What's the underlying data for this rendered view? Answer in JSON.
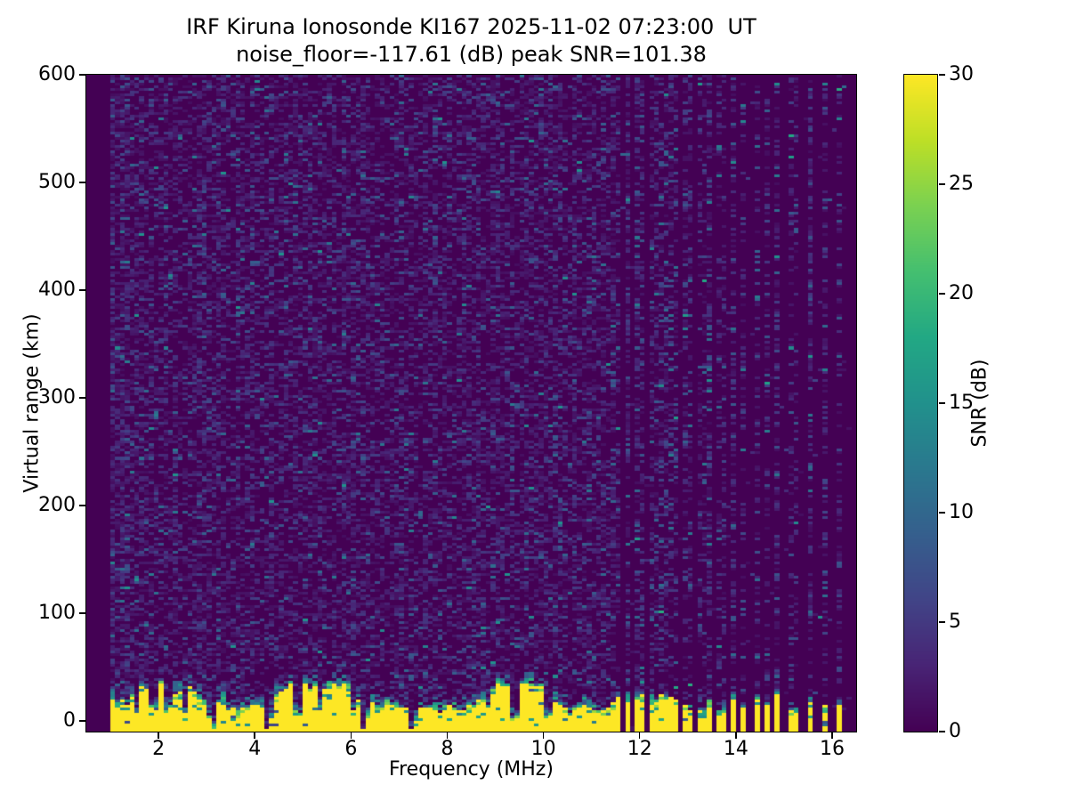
{
  "chart_data": {
    "type": "heatmap",
    "title_line1": "IRF Kiruna Ionosonde KI167 2025-11-02 07:23:00  UT",
    "title_line2": "noise_floor=-117.61 (dB) peak SNR=101.38",
    "station": "KI167",
    "timestamp_ut": "2025-11-02 07:23:00",
    "noise_floor_db": -117.61,
    "peak_snr_db": 101.38,
    "xlabel": "Frequency (MHz)",
    "ylabel": "Virtual range (km)",
    "colorbar_label": "SNR (dB)",
    "xlim": [
      0.5,
      16.5
    ],
    "ylim": [
      -10,
      600
    ],
    "snr_lim": [
      0,
      30
    ],
    "xticks": [
      2,
      4,
      6,
      8,
      10,
      12,
      14,
      16
    ],
    "yticks": [
      0,
      100,
      200,
      300,
      400,
      500,
      600
    ],
    "colorbar_ticks": [
      0,
      5,
      10,
      15,
      20,
      25,
      30
    ],
    "colormap": "viridis",
    "viridis_stops": [
      "#440154",
      "#482475",
      "#414487",
      "#355f8d",
      "#2a788e",
      "#21918c",
      "#22a884",
      "#44bf70",
      "#7ad151",
      "#bddf26",
      "#fde725"
    ],
    "data": {
      "freq_start_mhz": 1.0,
      "freq_end_mhz": 16.45,
      "freq_bin_mhz": 0.1,
      "range_bin_km": 2.5,
      "broadband_noise_end_mhz": 11.63,
      "ground_echo": {
        "top_base_km": 22,
        "top_min_km": 13,
        "top_max_km": 36,
        "transition_km": 16
      },
      "deep_notch_freqs_mhz": [
        3.1,
        4.3,
        6.3,
        7.3,
        9.45,
        10.1
      ],
      "notch_freqs_mhz": [
        1.55,
        1.9,
        2.2,
        2.55,
        3.45,
        3.7,
        4.9,
        5.35,
        6.05,
        7.9,
        8.3,
        8.85,
        10.5,
        11.0,
        11.2
      ],
      "interference_stripes_mhz": [
        {
          "f": 11.74,
          "s": 0.9
        },
        {
          "f": 11.91,
          "s": 0.85
        },
        {
          "f": 12.07,
          "s": 0.8
        },
        {
          "f": 12.24,
          "s": 0.75
        },
        {
          "f": 12.37,
          "s": 0.6
        },
        {
          "f": 12.5,
          "s": 0.7
        },
        {
          "f": 12.63,
          "s": 0.55
        },
        {
          "f": 12.74,
          "s": 0.65
        },
        {
          "f": 12.91,
          "s": 0.5
        },
        {
          "f": 13.09,
          "s": 0.45
        },
        {
          "f": 13.3,
          "s": 0.3
        },
        {
          "f": 13.48,
          "s": 0.75
        },
        {
          "f": 13.7,
          "s": 0.25
        },
        {
          "f": 13.93,
          "s": 0.7
        },
        {
          "f": 14.19,
          "s": 0.3
        },
        {
          "f": 14.44,
          "s": 0.5
        },
        {
          "f": 14.63,
          "s": 0.35
        },
        {
          "f": 14.89,
          "s": 0.65
        },
        {
          "f": 15.2,
          "s": 0.3
        },
        {
          "f": 15.57,
          "s": 0.75
        },
        {
          "f": 15.89,
          "s": 0.6
        },
        {
          "f": 16.17,
          "s": 0.4
        }
      ],
      "seed": 11
    }
  }
}
